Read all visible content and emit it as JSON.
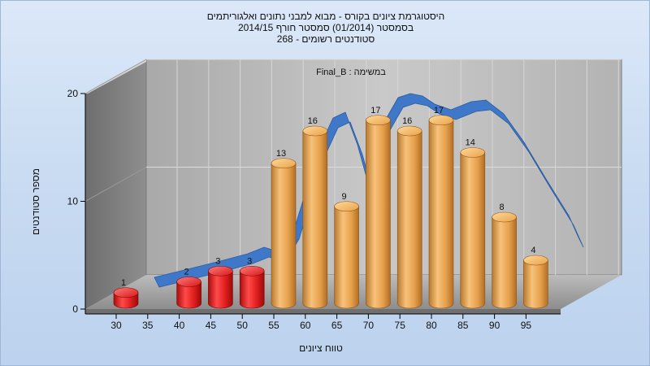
{
  "chart_data": {
    "type": "bar",
    "title_lines": [
      "היסטוגרמת ציונים בקורס - מבוא למבני נתונים ואלגוריתמים",
      "בסמסטר  (01/2014)  סמסטר חורף 2014/15",
      "סטודנטים רשומים - 268"
    ],
    "annotation": "Final_B : במשימה",
    "xlabel": "טווח ציונים",
    "ylabel": "מספר סטודנטים",
    "x_ticks": [
      "30",
      "35",
      "40",
      "45",
      "50",
      "55",
      "60",
      "65",
      "70",
      "75",
      "80",
      "85",
      "90",
      "95"
    ],
    "y_ticks": [
      "0",
      "10",
      "20"
    ],
    "ylim": [
      0,
      20
    ],
    "bars": [
      {
        "label": "30",
        "value": 1,
        "color": "#e02020"
      },
      {
        "label": "40",
        "value": 2,
        "color": "#e02020"
      },
      {
        "label": "45",
        "value": 3,
        "color": "#e02020"
      },
      {
        "label": "50",
        "value": 3,
        "color": "#e02020"
      },
      {
        "label": "55",
        "value": 13,
        "color": "#e8a24a"
      },
      {
        "label": "60",
        "value": 16,
        "color": "#e8a24a"
      },
      {
        "label": "65",
        "value": 9,
        "color": "#e8a24a"
      },
      {
        "label": "70",
        "value": 17,
        "color": "#e8a24a"
      },
      {
        "label": "75",
        "value": 16,
        "color": "#e8a24a"
      },
      {
        "label": "80",
        "value": 17,
        "color": "#e8a24a"
      },
      {
        "label": "85",
        "value": 14,
        "color": "#e8a24a"
      },
      {
        "label": "90",
        "value": 8,
        "color": "#e8a24a"
      },
      {
        "label": "95",
        "value": 4,
        "color": "#e8a24a"
      }
    ],
    "curve_label": "",
    "curve_color": "#3f78c8"
  }
}
